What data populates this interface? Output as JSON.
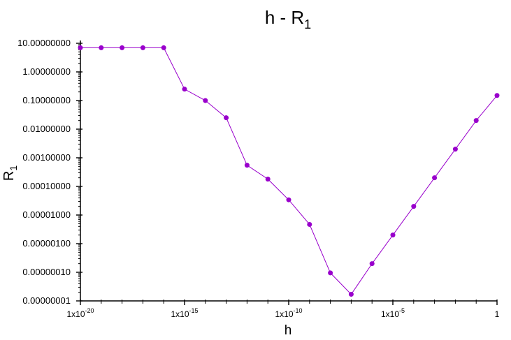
{
  "chart_data": {
    "type": "line",
    "title": {
      "base": "h - R",
      "sub": "1"
    },
    "xlabel": "h",
    "ylabel": {
      "base": "R",
      "sub": "1"
    },
    "x_scale": "log10",
    "y_scale": "log10",
    "xlim": [
      1e-20,
      1
    ],
    "ylim": [
      1e-07,
      10
    ],
    "grid": false,
    "legend": "none",
    "colors": {
      "series": "#9900cc",
      "axis": "#000000"
    },
    "x_ticks": [
      {
        "value": 1e-20,
        "label": "1x10",
        "sup": "-20"
      },
      {
        "value": 1e-15,
        "label": "1x10",
        "sup": "-15"
      },
      {
        "value": 1e-10,
        "label": "1x10",
        "sup": "-10"
      },
      {
        "value": 1e-05,
        "label": "1x10",
        "sup": "-5"
      },
      {
        "value": 1,
        "label": "1",
        "sup": ""
      }
    ],
    "y_ticks": [
      {
        "value": 10,
        "label": "10.00000000"
      },
      {
        "value": 1,
        "label": "1.00000000"
      },
      {
        "value": 0.1,
        "label": "0.10000000"
      },
      {
        "value": 0.01,
        "label": "0.01000000"
      },
      {
        "value": 0.001,
        "label": "0.00100000"
      },
      {
        "value": 0.0001,
        "label": "0.00010000"
      },
      {
        "value": 1e-05,
        "label": "0.00001000"
      },
      {
        "value": 1e-06,
        "label": "0.00000100"
      },
      {
        "value": 1e-07,
        "label": "0.00000010"
      },
      {
        "value": 1e-08,
        "label": "0.00000001"
      }
    ],
    "series": [
      {
        "x": [
          1e-20,
          1e-19,
          1e-18,
          1e-17,
          1e-16,
          1e-15,
          1e-14,
          1e-13,
          1e-12,
          1e-11,
          1e-10,
          1e-09,
          1e-08,
          1e-07,
          1e-06,
          1e-05,
          0.0001,
          0.001,
          0.01,
          0.1,
          1
        ],
        "y": [
          7,
          7,
          7,
          7,
          7,
          0.25,
          0.1,
          0.025,
          0.00055,
          0.00018,
          3.4e-05,
          4.7e-06,
          9.5e-08,
          1.7e-08,
          2e-07,
          2e-06,
          2e-05,
          0.0002,
          0.002,
          0.02,
          0.15
        ]
      }
    ]
  }
}
